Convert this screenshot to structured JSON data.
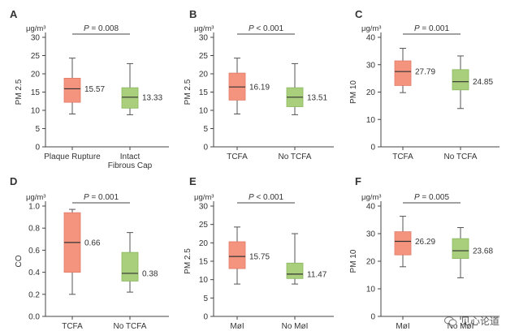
{
  "colors": {
    "red": "#f4947f",
    "red_stroke": "#e07a66",
    "green": "#a9cf7c",
    "green_stroke": "#8ab75e",
    "axis": "#444444"
  },
  "watermark": {
    "text": "见心论道",
    "icon": "wechat-icon"
  },
  "chart_data": [
    {
      "letter": "A",
      "type": "box",
      "ylabel": "PM 2.5",
      "unit": "μg/m³",
      "ylim": [
        0,
        30
      ],
      "yticks": [
        0,
        5,
        10,
        15,
        20,
        25,
        30
      ],
      "p_text": "P = 0.008",
      "categories": [
        "Plaque Rupture",
        "Intact\nFibrous Cap"
      ],
      "boxes": [
        {
          "min": 9,
          "q1": 12.2,
          "median": 15.9,
          "q3": 18.8,
          "max": 24.3,
          "label": "15.57",
          "color": "red"
        },
        {
          "min": 8.8,
          "q1": 10.6,
          "median": 13.6,
          "q3": 16.2,
          "max": 22.8,
          "label": "13.33",
          "color": "green"
        }
      ]
    },
    {
      "letter": "B",
      "type": "box",
      "ylabel": "PM 2.5",
      "unit": "μg/m³",
      "ylim": [
        0,
        30
      ],
      "yticks": [
        0,
        5,
        10,
        15,
        20,
        25,
        30
      ],
      "p_text": "P < 0.001",
      "categories": [
        "TCFA",
        "No TCFA"
      ],
      "boxes": [
        {
          "min": 9,
          "q1": 12.8,
          "median": 16.4,
          "q3": 20.2,
          "max": 24.3,
          "label": "16.19",
          "color": "red"
        },
        {
          "min": 8.8,
          "q1": 11,
          "median": 13.6,
          "q3": 16.2,
          "max": 22.8,
          "label": "13.51",
          "color": "green"
        }
      ]
    },
    {
      "letter": "C",
      "type": "box",
      "ylabel": "PM 10",
      "unit": "μg/m³",
      "ylim": [
        0,
        40
      ],
      "yticks": [
        0,
        10,
        20,
        30,
        40
      ],
      "p_text": "P = 0.001",
      "categories": [
        "TCFA",
        "No TCFA"
      ],
      "boxes": [
        {
          "min": 19.8,
          "q1": 22.4,
          "median": 27.5,
          "q3": 31.4,
          "max": 36,
          "label": "27.79",
          "color": "red"
        },
        {
          "min": 14,
          "q1": 20.8,
          "median": 23.8,
          "q3": 28.2,
          "max": 33.2,
          "label": "24.85",
          "color": "green"
        }
      ]
    },
    {
      "letter": "D",
      "type": "box",
      "ylabel": "CO",
      "unit": "μg/m³",
      "ylim": [
        0,
        1.0
      ],
      "yticks": [
        0,
        0.2,
        0.4,
        0.6,
        0.8,
        1.0
      ],
      "tick_format": "fixed1",
      "p_text": "P = 0.001",
      "categories": [
        "TCFA",
        "No TCFA"
      ],
      "boxes": [
        {
          "min": 0.2,
          "q1": 0.4,
          "median": 0.67,
          "q3": 0.94,
          "max": 0.97,
          "label": "0.66",
          "color": "red"
        },
        {
          "min": 0.22,
          "q1": 0.32,
          "median": 0.39,
          "q3": 0.58,
          "max": 0.76,
          "label": "0.38",
          "color": "green"
        }
      ]
    },
    {
      "letter": "E",
      "type": "box",
      "ylabel": "PM 2.5",
      "unit": "μg/m³",
      "ylim": [
        0,
        30
      ],
      "yticks": [
        0,
        5,
        10,
        15,
        20,
        25,
        30
      ],
      "p_text": "P < 0.001",
      "categories": [
        "MøI",
        "No MøI"
      ],
      "boxes": [
        {
          "min": 8.8,
          "q1": 13,
          "median": 16.3,
          "q3": 20.3,
          "max": 24.3,
          "label": "15.75",
          "color": "red"
        },
        {
          "min": 8.8,
          "q1": 10.3,
          "median": 11.5,
          "q3": 14.5,
          "max": 22.5,
          "label": "11.47",
          "color": "green"
        }
      ]
    },
    {
      "letter": "F",
      "type": "box",
      "ylabel": "PM 10",
      "unit": "μg/m³",
      "ylim": [
        0,
        40
      ],
      "yticks": [
        0,
        10,
        20,
        30,
        40
      ],
      "p_text": "P = 0.005",
      "categories": [
        "MøI",
        "No MøI"
      ],
      "boxes": [
        {
          "min": 18,
          "q1": 22.3,
          "median": 27.2,
          "q3": 30.7,
          "max": 36.3,
          "label": "26.29",
          "color": "red"
        },
        {
          "min": 14,
          "q1": 21,
          "median": 23.8,
          "q3": 28.2,
          "max": 32.2,
          "label": "23.68",
          "color": "green"
        }
      ]
    }
  ]
}
